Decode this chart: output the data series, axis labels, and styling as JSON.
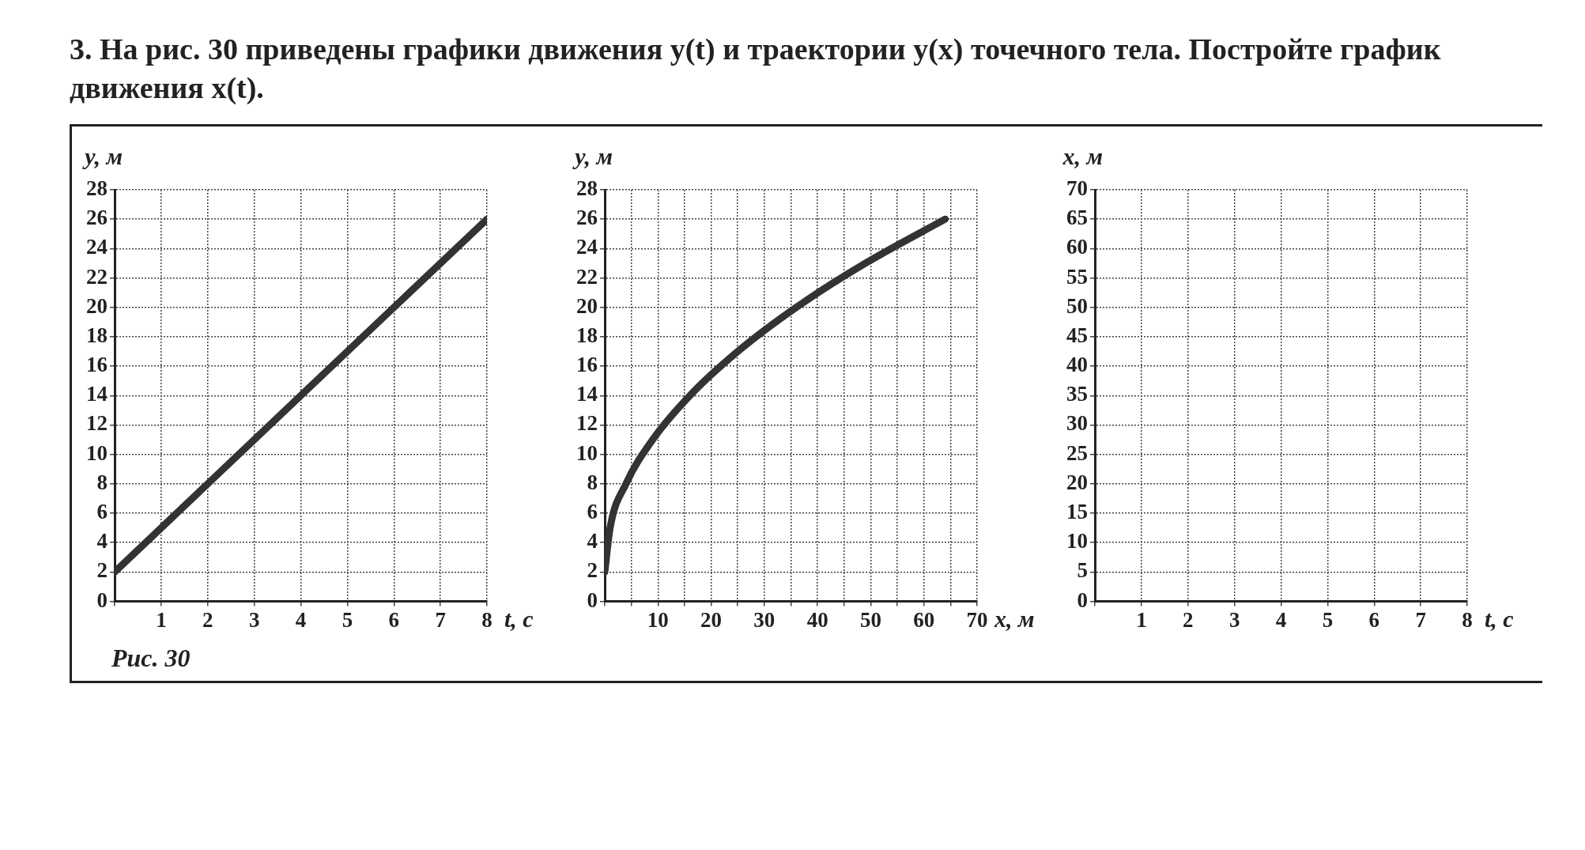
{
  "chart_data": [
    {
      "type": "line",
      "title": "3. На рис. 30 приведены графики движения y(t) и траектории y(x) точечного тела. Постройте график движения x(t).",
      "xlabel": "t, с",
      "ylabel": "y, м",
      "xlim": [
        0,
        8
      ],
      "ylim": [
        0,
        28
      ],
      "xticks": [
        {
          "value": 0,
          "label": null
        },
        1,
        2,
        3,
        4,
        5,
        6,
        7,
        8
      ],
      "yticks": [
        0,
        2,
        4,
        6,
        8,
        10,
        12,
        14,
        16,
        18,
        20,
        22,
        24,
        26,
        28
      ],
      "grid": true,
      "marker": "none",
      "line_style": "solid",
      "legend": false,
      "series": [
        {
          "color": "#333333",
          "x": [
            0,
            8
          ],
          "values": [
            2,
            26
          ]
        }
      ]
    },
    {
      "type": "line",
      "xlabel": "x, м",
      "ylabel": "y, м",
      "xlim": [
        0,
        70
      ],
      "ylim": [
        0,
        28
      ],
      "xticks": [
        {
          "value": 0,
          "label": null
        },
        {
          "value": 5,
          "label": null
        },
        10,
        {
          "value": 15,
          "label": null
        },
        20,
        {
          "value": 25,
          "label": null
        },
        30,
        {
          "value": 35,
          "label": null
        },
        40,
        {
          "value": 45,
          "label": null
        },
        50,
        {
          "value": 55,
          "label": null
        },
        60,
        {
          "value": 65,
          "label": null
        },
        70
      ],
      "yticks": [
        0,
        2,
        4,
        6,
        8,
        10,
        12,
        14,
        16,
        18,
        20,
        22,
        24,
        26,
        28
      ],
      "grid": true,
      "marker": "none",
      "line_style": "solid",
      "legend": false,
      "series": [
        {
          "color": "#333333",
          "x": [
            0,
            1,
            4,
            9,
            16,
            25,
            36,
            49,
            64
          ],
          "values": [
            2,
            5,
            8,
            11,
            14,
            17,
            20,
            23,
            26
          ]
        }
      ]
    },
    {
      "type": "line",
      "xlabel": "t, с",
      "ylabel": "x, м",
      "xlim": [
        0,
        8
      ],
      "ylim": [
        0,
        70
      ],
      "xticks": [
        {
          "value": 0,
          "label": null
        },
        1,
        2,
        3,
        4,
        5,
        6,
        7,
        8
      ],
      "yticks": [
        0,
        5,
        10,
        15,
        20,
        25,
        30,
        35,
        40,
        45,
        50,
        55,
        60,
        65,
        70
      ],
      "grid": true,
      "legend": false,
      "annotations": [
        "Рис. 30"
      ]
    }
  ]
}
